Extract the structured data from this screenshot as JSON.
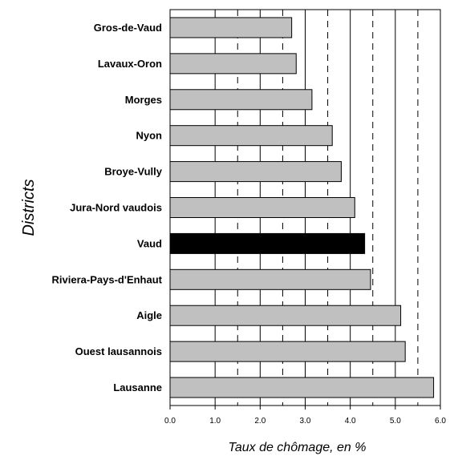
{
  "chart_data": {
    "type": "bar",
    "orientation": "horizontal",
    "categories": [
      "Gros-de-Vaud",
      "Lavaux-Oron",
      "Morges",
      "Nyon",
      "Broye-Vully",
      "Jura-Nord vaudois",
      "Vaud",
      "Riviera-Pays-d'Enhaut",
      "Aigle",
      "Ouest lausannois",
      "Lausanne"
    ],
    "values": [
      2.7,
      2.8,
      3.15,
      3.6,
      3.8,
      4.1,
      4.32,
      4.45,
      5.12,
      5.22,
      5.85
    ],
    "highlight": "Vaud",
    "xlim": [
      0,
      6
    ],
    "xticks": [
      "0.0",
      "1.0",
      "2.0",
      "3.0",
      "4.0",
      "5.0",
      "6.0"
    ],
    "xlabel": "Taux de chômage, en %",
    "ylabel": "Districts",
    "colors": {
      "bar": "#c0c0c0",
      "highlight": "#000000",
      "outline": "#000000"
    },
    "gridlines": {
      "solid": [
        1,
        2,
        3,
        4,
        5
      ],
      "dashed": [
        1.5,
        2.5,
        3.5,
        4.5,
        5.5
      ]
    }
  }
}
